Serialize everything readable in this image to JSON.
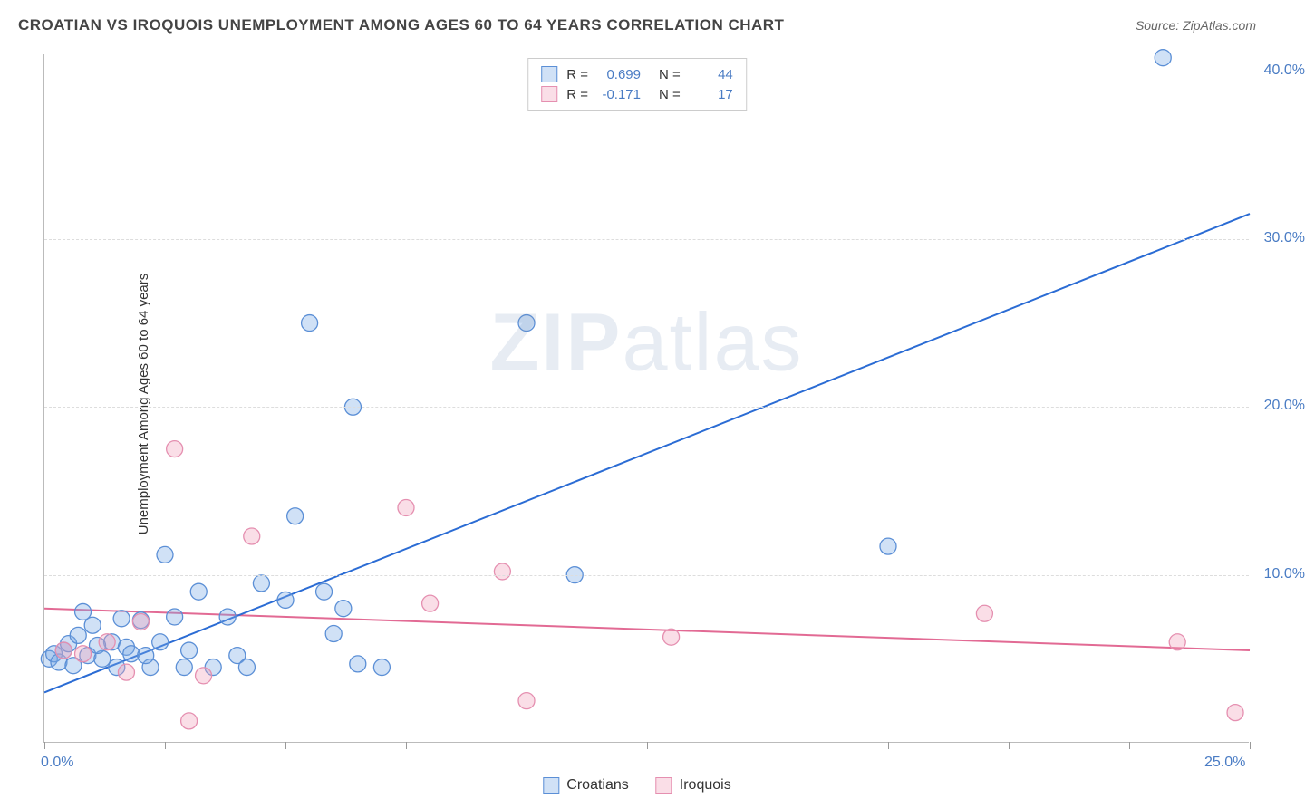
{
  "title": "CROATIAN VS IROQUOIS UNEMPLOYMENT AMONG AGES 60 TO 64 YEARS CORRELATION CHART",
  "source": "Source: ZipAtlas.com",
  "y_axis_title": "Unemployment Among Ages 60 to 64 years",
  "watermark": {
    "bold": "ZIP",
    "rest": "atlas"
  },
  "chart": {
    "type": "scatter-with-regression",
    "xlim": [
      0,
      25
    ],
    "ylim": [
      0,
      41
    ],
    "x_ticks": [
      0,
      2.5,
      5,
      7.5,
      10,
      12.5,
      15,
      17.5,
      20,
      22.5,
      25
    ],
    "x_tick_labels": {
      "0": "0.0%",
      "25": "25.0%"
    },
    "y_gridlines": [
      10,
      20,
      30,
      40
    ],
    "y_tick_labels": {
      "10": "10.0%",
      "20": "20.0%",
      "30": "30.0%",
      "40": "40.0%"
    },
    "background_color": "#ffffff",
    "grid_color": "#dddddd",
    "axis_color": "#bbbbbb",
    "axis_label_color": "#4a7cc4",
    "marker_radius": 9,
    "marker_stroke_width": 1.3,
    "line_width": 2,
    "series": {
      "croatians": {
        "label": "Croatians",
        "fill": "rgba(120,168,230,0.35)",
        "stroke": "#5b8fd6",
        "line_color": "#2b6cd4",
        "R": "0.699",
        "N": "44",
        "regression": {
          "x1": 0,
          "y1": 3.0,
          "x2": 25,
          "y2": 31.5
        },
        "points": [
          [
            0.1,
            5.0
          ],
          [
            0.2,
            5.3
          ],
          [
            0.3,
            4.8
          ],
          [
            0.4,
            5.5
          ],
          [
            0.5,
            5.9
          ],
          [
            0.6,
            4.6
          ],
          [
            0.7,
            6.4
          ],
          [
            0.8,
            7.8
          ],
          [
            0.9,
            5.2
          ],
          [
            1.0,
            7.0
          ],
          [
            1.2,
            5.0
          ],
          [
            1.4,
            6.0
          ],
          [
            1.5,
            4.5
          ],
          [
            1.6,
            7.4
          ],
          [
            1.7,
            5.7
          ],
          [
            1.8,
            5.3
          ],
          [
            2.0,
            7.3
          ],
          [
            2.2,
            4.5
          ],
          [
            2.4,
            6.0
          ],
          [
            2.5,
            11.2
          ],
          [
            2.7,
            7.5
          ],
          [
            2.9,
            4.5
          ],
          [
            3.0,
            5.5
          ],
          [
            3.2,
            9.0
          ],
          [
            3.5,
            4.5
          ],
          [
            3.8,
            7.5
          ],
          [
            4.0,
            5.2
          ],
          [
            4.2,
            4.5
          ],
          [
            4.5,
            9.5
          ],
          [
            5.0,
            8.5
          ],
          [
            5.2,
            13.5
          ],
          [
            5.5,
            25.0
          ],
          [
            5.8,
            9.0
          ],
          [
            6.0,
            6.5
          ],
          [
            6.2,
            8.0
          ],
          [
            6.4,
            20.0
          ],
          [
            6.5,
            4.7
          ],
          [
            7.0,
            4.5
          ],
          [
            10.0,
            25.0
          ],
          [
            11.0,
            10.0
          ],
          [
            17.5,
            11.7
          ],
          [
            23.2,
            40.8
          ],
          [
            1.1,
            5.8
          ],
          [
            2.1,
            5.2
          ]
        ]
      },
      "iroquois": {
        "label": "Iroquois",
        "fill": "rgba(240,160,185,0.35)",
        "stroke": "#e58fb0",
        "line_color": "#e26a94",
        "R": "-0.171",
        "N": "17",
        "regression": {
          "x1": 0,
          "y1": 8.0,
          "x2": 25,
          "y2": 5.5
        },
        "points": [
          [
            0.4,
            5.5
          ],
          [
            0.8,
            5.3
          ],
          [
            1.3,
            6.0
          ],
          [
            1.7,
            4.2
          ],
          [
            2.0,
            7.2
          ],
          [
            2.7,
            17.5
          ],
          [
            3.0,
            1.3
          ],
          [
            3.3,
            4.0
          ],
          [
            4.3,
            12.3
          ],
          [
            7.5,
            14.0
          ],
          [
            8.0,
            8.3
          ],
          [
            9.5,
            10.2
          ],
          [
            10.0,
            2.5
          ],
          [
            13.0,
            6.3
          ],
          [
            19.5,
            7.7
          ],
          [
            23.5,
            6.0
          ],
          [
            24.7,
            1.8
          ]
        ]
      }
    }
  },
  "legend_top": {
    "rows": [
      {
        "series": "croatians",
        "R_label": "R =",
        "N_label": "N ="
      },
      {
        "series": "iroquois",
        "R_label": "R =",
        "N_label": "N ="
      }
    ]
  },
  "legend_bottom": [
    "croatians",
    "iroquois"
  ]
}
